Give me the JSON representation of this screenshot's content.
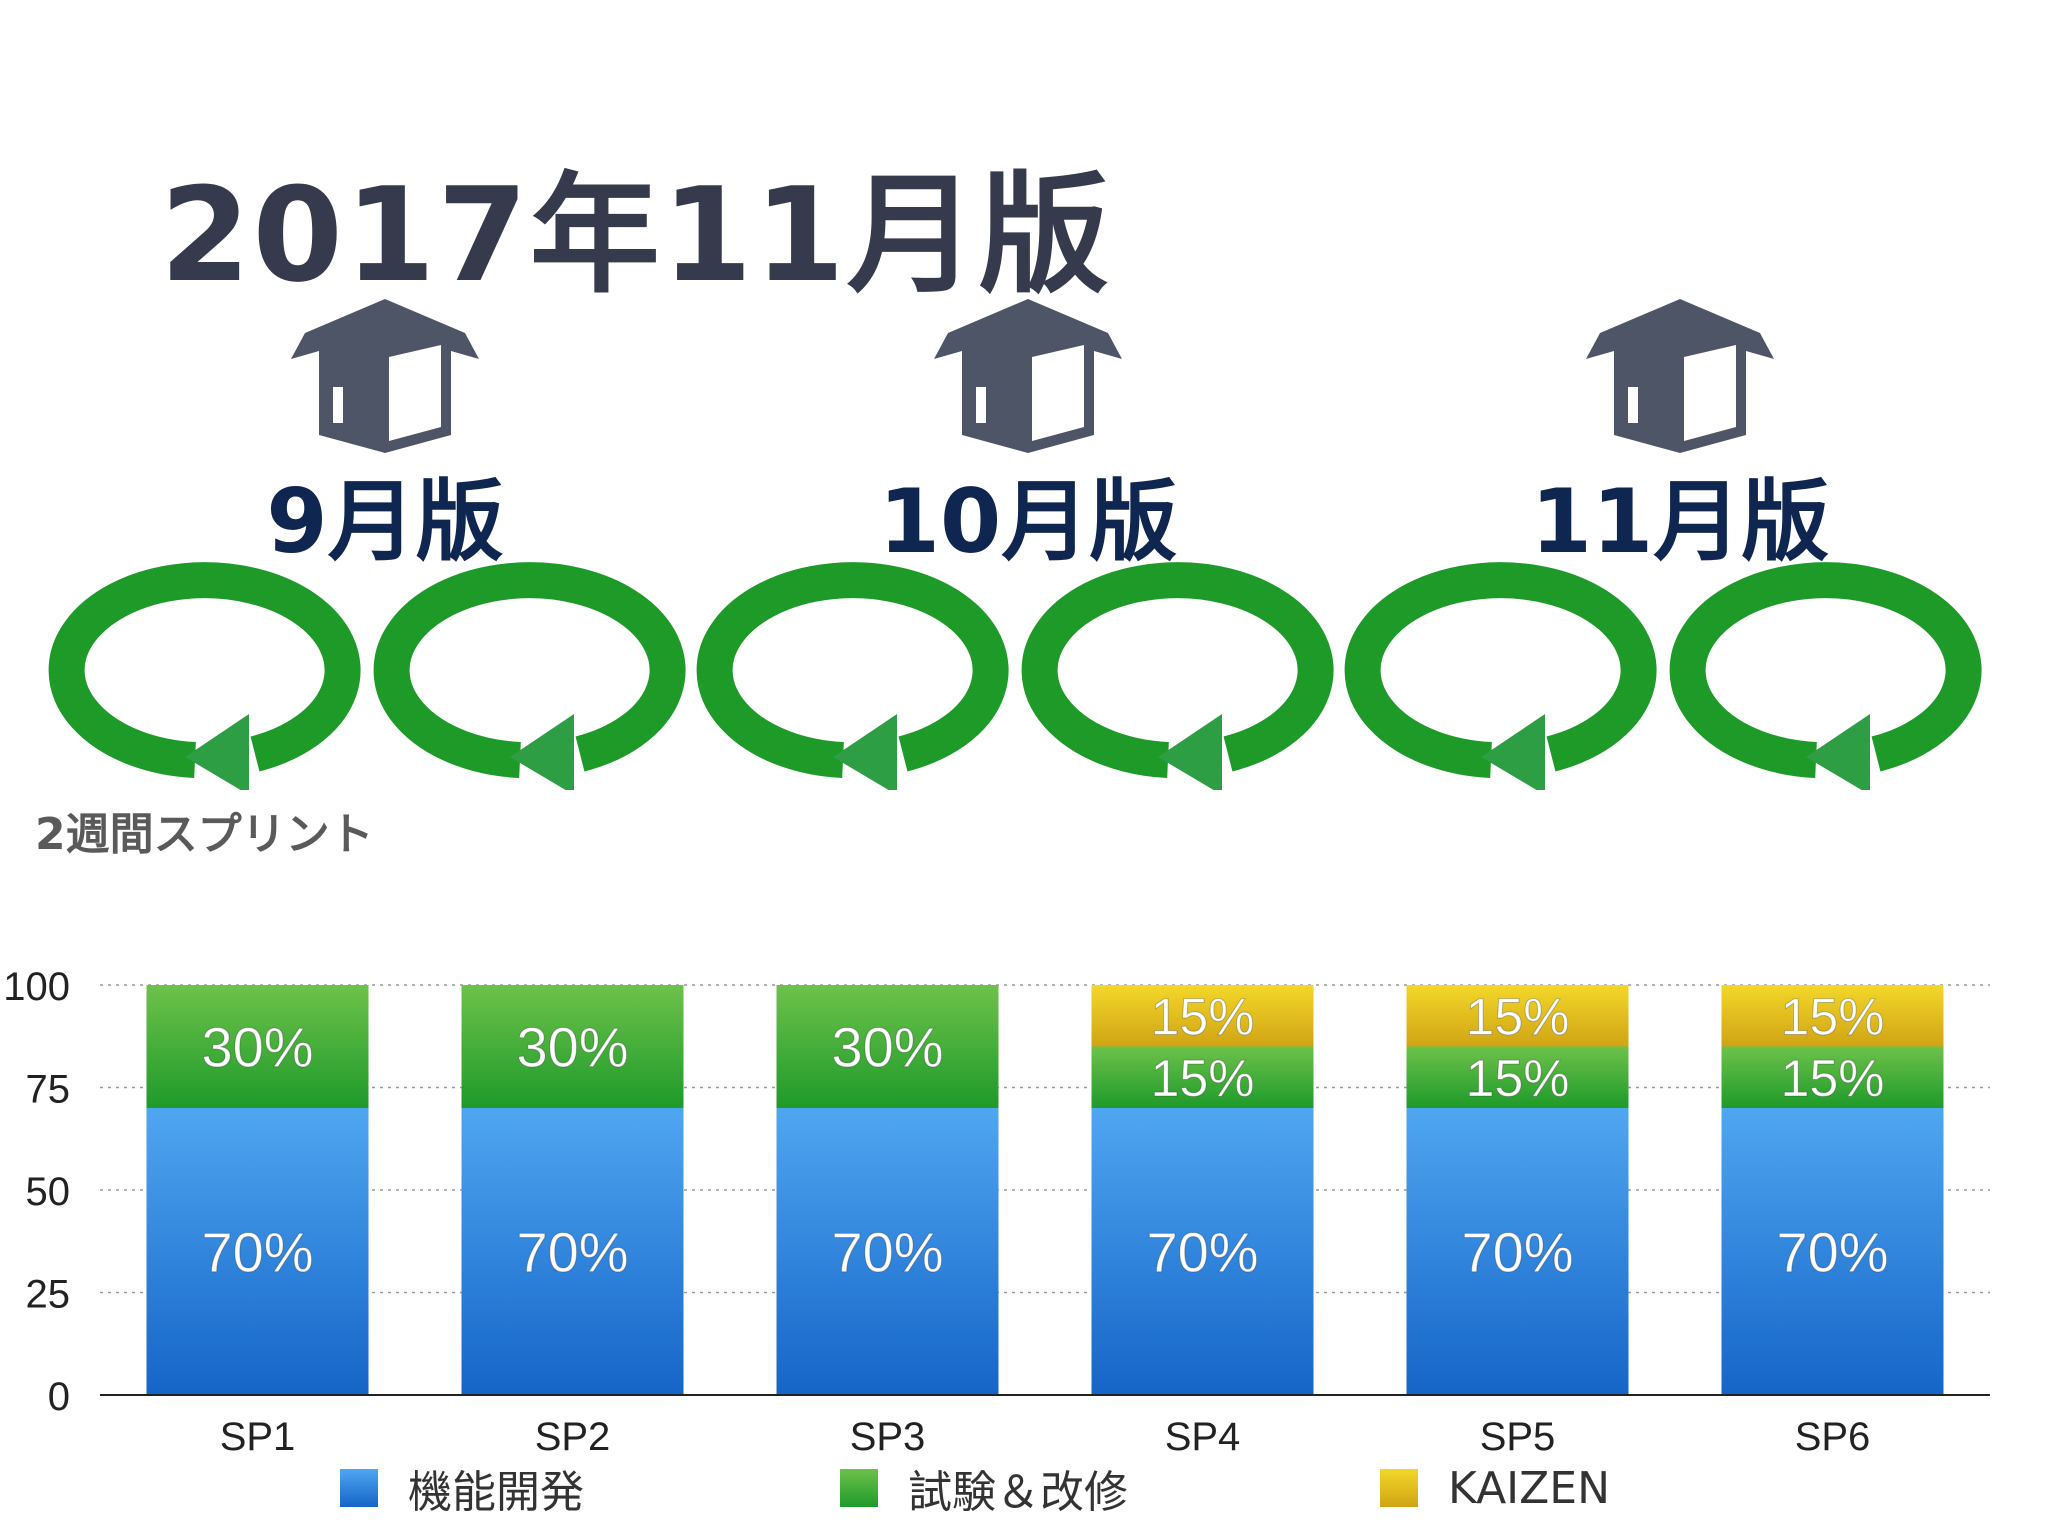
{
  "header": {
    "title": "2017年11月版",
    "note": "2週間スプリント"
  },
  "releases": [
    {
      "label": "9月版",
      "icon": "box-icon"
    },
    {
      "label": "10月版",
      "icon": "box-icon"
    },
    {
      "label": "11月版",
      "icon": "box-icon"
    }
  ],
  "sprint_loops": [
    {
      "icon": "cycle-arrow-icon"
    },
    {
      "icon": "cycle-arrow-icon"
    },
    {
      "icon": "cycle-arrow-icon"
    },
    {
      "icon": "cycle-arrow-icon"
    },
    {
      "icon": "cycle-arrow-icon"
    },
    {
      "icon": "cycle-arrow-icon"
    }
  ],
  "colors": {
    "box": "#4e5566",
    "loop": "#1d9a28",
    "loop_arrow": "#2e9e44",
    "release_text": "#0f2650",
    "title_text": "#363a4d"
  },
  "chart_data": {
    "type": "bar",
    "stacked": true,
    "categories": [
      "SP1",
      "SP2",
      "SP3",
      "SP4",
      "SP5",
      "SP6"
    ],
    "series": [
      {
        "name": "機能開発",
        "values": [
          70,
          70,
          70,
          70,
          70,
          70
        ],
        "labels": [
          "70%",
          "70%",
          "70%",
          "70%",
          "70%",
          "70%"
        ],
        "color_top": "#4fa6f0",
        "color_bottom": "#1565c8"
      },
      {
        "name": "試験＆改修",
        "values": [
          30,
          30,
          30,
          15,
          15,
          15
        ],
        "labels": [
          "30%",
          "30%",
          "30%",
          "15%",
          "15%",
          "15%"
        ],
        "color_top": "#6dc24a",
        "color_bottom": "#1e9a2a"
      },
      {
        "name": "KAIZEN",
        "values": [
          0,
          0,
          0,
          15,
          15,
          15
        ],
        "labels": [
          "",
          "",
          "",
          "15%",
          "15%",
          "15%"
        ],
        "color_top": "#f3d72a",
        "color_bottom": "#d0a414"
      }
    ],
    "yticks": [
      "0",
      "25",
      "50",
      "75",
      "100"
    ],
    "ylim": [
      0,
      100
    ],
    "grid": true,
    "legend_position": "bottom"
  }
}
